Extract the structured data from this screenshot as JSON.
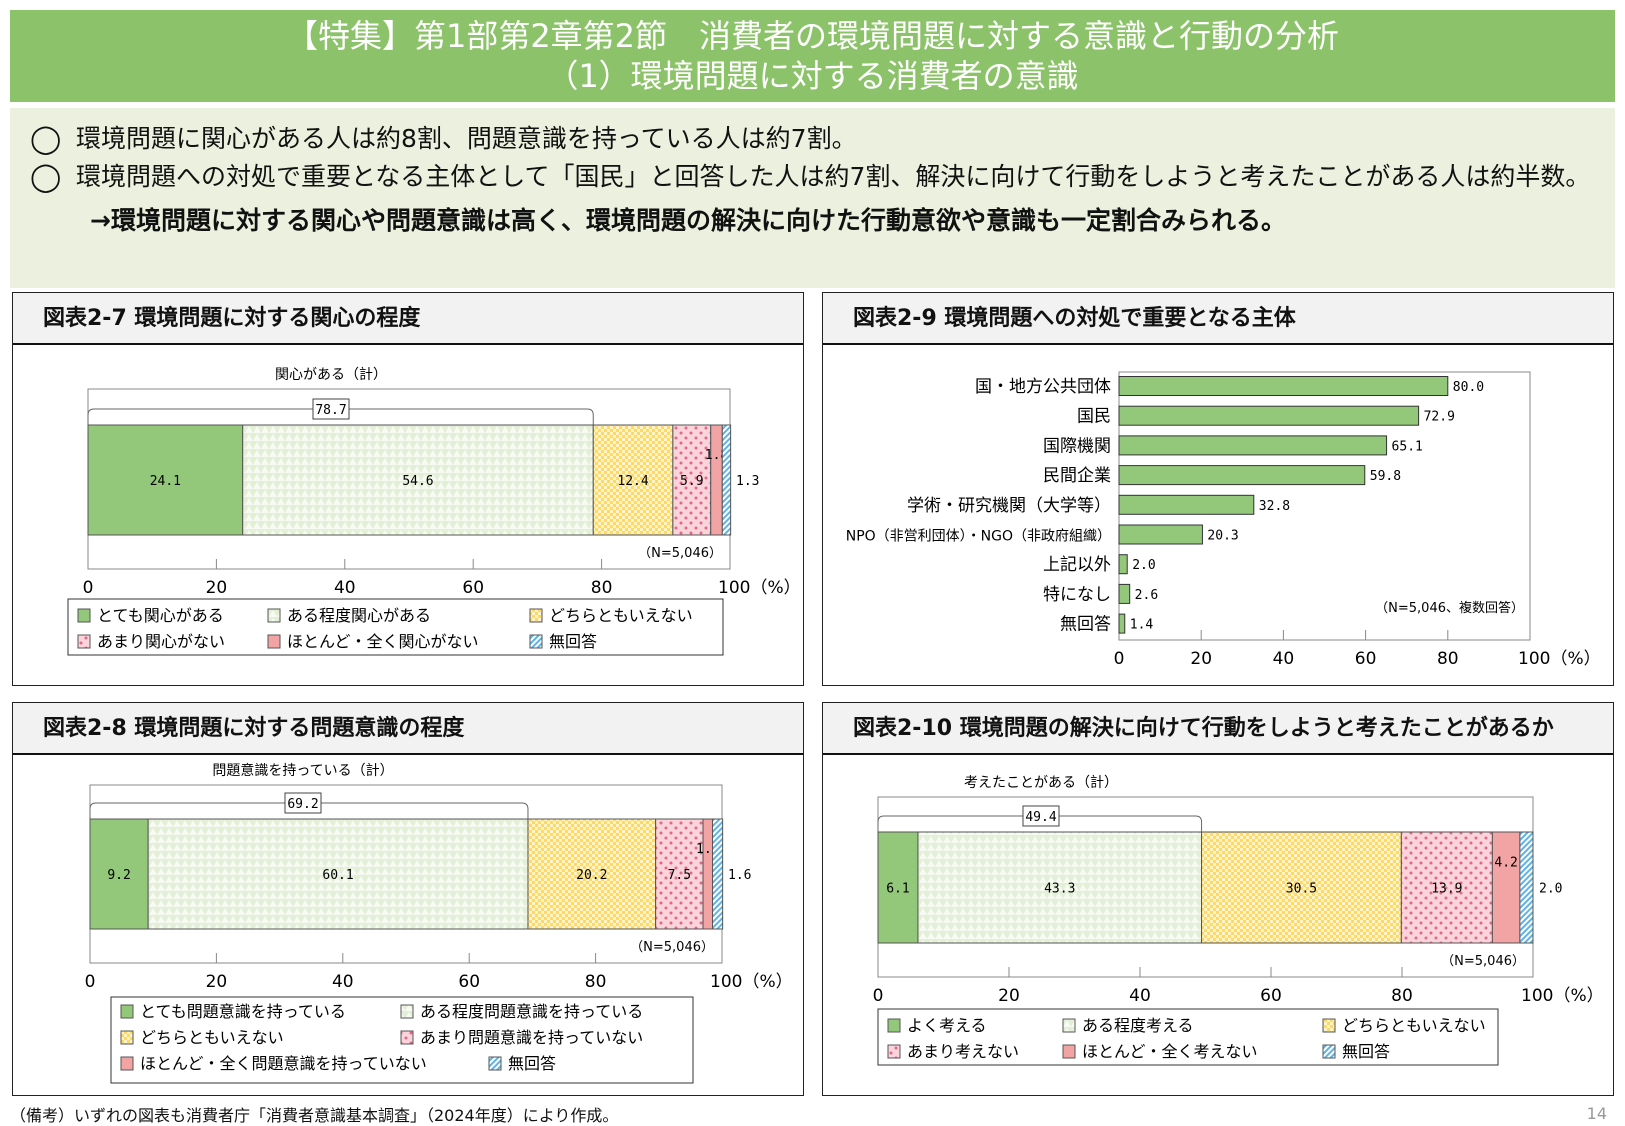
{
  "header": {
    "line1": "【特集】第1部第2章第2節　消費者の環境問題に対する意識と行動の分析",
    "line2": "（1）環境問題に対する消費者の意識"
  },
  "summary": {
    "bullet": "◯",
    "points": [
      "環境問題に関心がある人は約8割、問題意識を持っている人は約7割。",
      "環境問題への対処で重要となる主体として「国民」と回答した人は約7割、解決に向けて行動をしようと考えたことがある人は約半数。"
    ],
    "conclusion": "→環境問題に対する関心や問題意識は高く、環境問題の解決に向けた行動意欲や意識も一定割合みられる。"
  },
  "footnote": "（備考）いずれの図表も消費者庁「消費者意識基本調査」（2024年度）により作成。",
  "page_number": "14",
  "chart_data": [
    {
      "id": "fig27",
      "title": "図表2-7 環境問題に対する関心の程度",
      "type": "bar",
      "stacked": true,
      "orientation": "horizontal",
      "bracket_label": "関心がある（計）",
      "bracket_value": "78.7",
      "note": "（N=5,046）",
      "xlim": [
        0,
        100
      ],
      "xticks": [
        "0",
        "20",
        "40",
        "60",
        "80",
        "100（%）"
      ],
      "series": [
        {
          "name": "とても関心がある",
          "value": 24.1,
          "color": "#93c87a",
          "pattern": "solid"
        },
        {
          "name": "ある程度関心がある",
          "value": 54.6,
          "color": "#e3f0d7",
          "pattern": "triangles"
        },
        {
          "name": "どちらともいえない",
          "value": 12.4,
          "color": "#ffd966",
          "pattern": "checks"
        },
        {
          "name": "あまり関心がない",
          "value": 5.9,
          "color": "#f8c3cc",
          "pattern": "dots"
        },
        {
          "name": "ほとんど・全く関心がない",
          "value": 1.8,
          "color": "#f2a3a3",
          "pattern": "solid"
        },
        {
          "name": "無回答",
          "value": 1.3,
          "color": "#9fd3f2",
          "pattern": "hatch"
        }
      ]
    },
    {
      "id": "fig28",
      "title": "図表2-8 環境問題に対する問題意識の程度",
      "type": "bar",
      "stacked": true,
      "orientation": "horizontal",
      "bracket_label": "問題意識を持っている（計）",
      "bracket_value": "69.2",
      "note": "（N=5,046）",
      "xlim": [
        0,
        100
      ],
      "xticks": [
        "0",
        "20",
        "40",
        "60",
        "80",
        "100（%）"
      ],
      "series": [
        {
          "name": "とても問題意識を持っている",
          "value": 9.2,
          "color": "#93c87a",
          "pattern": "solid"
        },
        {
          "name": "ある程度問題意識を持っている",
          "value": 60.1,
          "color": "#e3f0d7",
          "pattern": "triangles"
        },
        {
          "name": "どちらともいえない",
          "value": 20.2,
          "color": "#ffd966",
          "pattern": "checks"
        },
        {
          "name": "あまり問題意識を持っていない",
          "value": 7.5,
          "color": "#f8c3cc",
          "pattern": "dots"
        },
        {
          "name": "ほとんど・全く問題意識を持っていない",
          "value": 1.5,
          "color": "#f2a3a3",
          "pattern": "solid"
        },
        {
          "name": "無回答",
          "value": 1.6,
          "color": "#9fd3f2",
          "pattern": "hatch"
        }
      ]
    },
    {
      "id": "fig29",
      "title": "図表2-9 環境問題への対処で重要となる主体",
      "type": "bar",
      "orientation": "horizontal",
      "note": "（N=5,046、複数回答）",
      "xlim": [
        0,
        100
      ],
      "xticks": [
        "0",
        "20",
        "40",
        "60",
        "80",
        "100（%）"
      ],
      "color": "#93c87a",
      "categories": [
        "国・地方公共団体",
        "国民",
        "国際機関",
        "民間企業",
        "学術・研究機関（大学等）",
        "NPO（非営利団体）・NGO（非政府組織）",
        "上記以外",
        "特になし",
        "無回答"
      ],
      "values": [
        80.0,
        72.9,
        65.1,
        59.8,
        32.8,
        20.3,
        2.0,
        2.6,
        1.4
      ],
      "labels": [
        "80.0",
        "72.9",
        "65.1",
        "59.8",
        "32.8",
        "20.3",
        "2.0",
        "2.6",
        "1.4"
      ]
    },
    {
      "id": "fig210",
      "title": "図表2-10 環境問題の解決に向けて行動をしようと考えたことがあるか",
      "type": "bar",
      "stacked": true,
      "orientation": "horizontal",
      "bracket_label": "考えたことがある（計）",
      "bracket_value": "49.4",
      "note": "（N=5,046）",
      "xlim": [
        0,
        100
      ],
      "xticks": [
        "0",
        "20",
        "40",
        "60",
        "80",
        "100（%）"
      ],
      "series": [
        {
          "name": "よく考える",
          "value": 6.1,
          "color": "#93c87a",
          "pattern": "solid"
        },
        {
          "name": "ある程度考える",
          "value": 43.3,
          "color": "#e3f0d7",
          "pattern": "triangles"
        },
        {
          "name": "どちらともいえない",
          "value": 30.5,
          "color": "#ffd966",
          "pattern": "checks"
        },
        {
          "name": "あまり考えない",
          "value": 13.9,
          "color": "#f8c3cc",
          "pattern": "dots"
        },
        {
          "name": "ほとんど・全く考えない",
          "value": 4.2,
          "color": "#f2a3a3",
          "pattern": "solid"
        },
        {
          "name": "無回答",
          "value": 2.0,
          "color": "#9fd3f2",
          "pattern": "hatch"
        }
      ]
    }
  ]
}
